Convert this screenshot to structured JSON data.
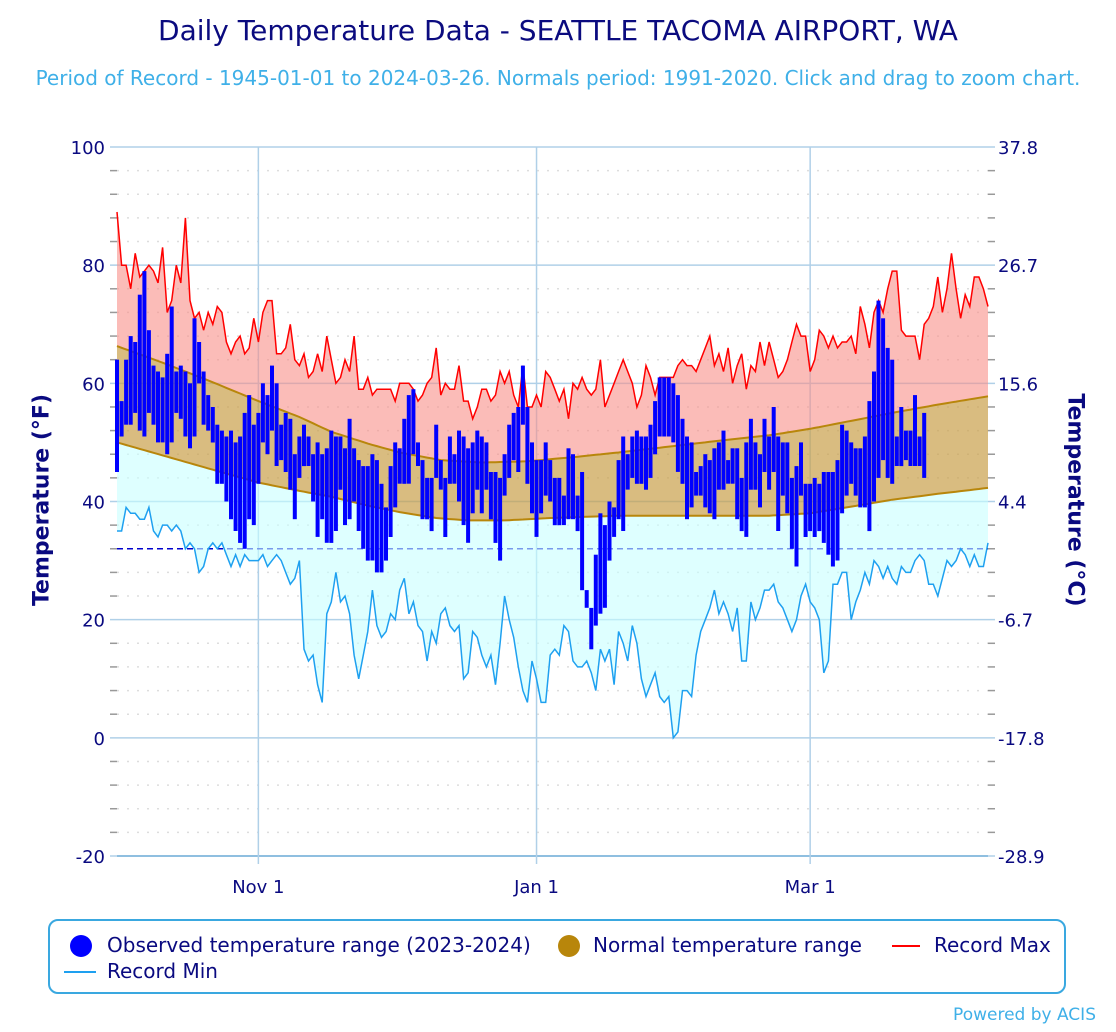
{
  "chart_data": {
    "type": "bar",
    "title": "Daily Temperature Data - SEATTLE TACOMA AIRPORT, WA",
    "subtitle": "Period of Record - 1945-01-01 to 2024-03-26. Normals period: 1991-2020. Click and drag to zoom chart.",
    "xlabel": "",
    "ylabel": "Temperature (°F)",
    "y2label": "Temperature (°C)",
    "ylim": [
      -20,
      100
    ],
    "y_ticks": [
      "100",
      "80",
      "60",
      "40",
      "20",
      "0",
      "-20"
    ],
    "y_tick_values": [
      100,
      80,
      60,
      40,
      20,
      0,
      -20
    ],
    "y2_ticks": [
      "37.8",
      "26.7",
      "15.6",
      "4.4",
      "-6.7",
      "-17.8",
      "-28.9"
    ],
    "x_start": "2023-10-01",
    "x_days": 192,
    "x_ticks": [
      {
        "label": "Nov 1",
        "day": 31
      },
      {
        "label": "Jan 1",
        "day": 92
      },
      {
        "label": "Mar 1",
        "day": 152
      }
    ],
    "grid": true,
    "freezing_line_f": 32,
    "legend_placement": "bottom",
    "colors": {
      "observed": "#0000ff",
      "normal": "#b8860b",
      "record_max": "#ff0000",
      "record_min": "#1ea0f0"
    },
    "series": {
      "observed": {
        "name": "Observed temperature range (2023-2024)",
        "high": [
          64,
          57,
          64,
          68,
          67,
          75,
          79,
          69,
          63,
          62,
          61,
          65,
          73,
          62,
          63,
          62,
          60,
          71,
          67,
          62,
          58,
          56,
          53,
          52,
          51,
          52,
          50,
          51,
          55,
          58,
          53,
          55,
          60,
          58,
          63,
          60,
          53,
          55,
          54,
          48,
          51,
          53,
          51,
          48,
          50,
          48,
          49,
          52,
          51,
          51,
          49,
          54,
          49,
          47,
          46,
          46,
          48,
          47,
          43,
          39,
          46,
          50,
          49,
          54,
          58,
          59,
          50,
          47,
          44,
          44,
          53,
          47,
          44,
          51,
          48,
          52,
          51,
          49,
          50,
          52,
          51,
          50,
          45,
          45,
          44,
          48,
          53,
          55,
          56,
          63,
          56,
          50,
          47,
          47,
          50,
          47,
          44,
          44,
          41,
          49,
          48,
          41,
          45,
          25,
          22,
          31,
          38,
          36,
          40,
          39,
          47,
          51,
          48,
          51,
          52,
          51,
          51,
          53,
          57,
          61,
          61,
          61,
          60,
          58,
          54,
          51,
          50,
          45,
          46,
          48,
          47,
          49,
          50,
          52,
          47,
          49,
          49,
          44,
          50,
          54,
          50,
          48,
          54,
          51,
          56,
          51,
          50,
          50,
          44,
          46,
          50,
          43,
          43,
          44,
          43,
          45,
          45,
          45,
          47,
          53,
          52,
          50,
          49,
          49,
          51,
          57,
          62,
          74,
          71,
          66,
          64,
          51,
          56,
          52,
          52,
          58,
          51,
          55
        ],
        "low": [
          45,
          51,
          53,
          53,
          55,
          52,
          51,
          55,
          53,
          50,
          50,
          48,
          50,
          55,
          54,
          51,
          49,
          51,
          60,
          53,
          52,
          50,
          43,
          43,
          40,
          37,
          35,
          33,
          32,
          37,
          36,
          43,
          50,
          48,
          52,
          46,
          47,
          45,
          42,
          37,
          44,
          46,
          46,
          40,
          34,
          37,
          33,
          33,
          35,
          42,
          36,
          37,
          40,
          35,
          32,
          30,
          30,
          28,
          28,
          30,
          34,
          39,
          43,
          43,
          43,
          48,
          46,
          37,
          37,
          35,
          44,
          42,
          34,
          43,
          43,
          40,
          36,
          33,
          38,
          42,
          38,
          42,
          37,
          33,
          30,
          41,
          44,
          47,
          45,
          53,
          43,
          38,
          34,
          38,
          41,
          40,
          36,
          36,
          36,
          37,
          37,
          35,
          25,
          22,
          15,
          19,
          21,
          22,
          30,
          34,
          37,
          35,
          42,
          44,
          43,
          43,
          42,
          44,
          48,
          51,
          51,
          51,
          50,
          45,
          43,
          37,
          39,
          41,
          41,
          39,
          38,
          37,
          42,
          42,
          43,
          43,
          37,
          35,
          34,
          42,
          42,
          39,
          45,
          42,
          45,
          35,
          41,
          38,
          32,
          29,
          41,
          34,
          35,
          34,
          35,
          33,
          31,
          29,
          30,
          38,
          41,
          43,
          41,
          39,
          39,
          35,
          40,
          44,
          47,
          44,
          43,
          46,
          46,
          47,
          46,
          46,
          46,
          44
        ]
      },
      "normal": {
        "name": "Normal temperature range",
        "high_points": [
          [
            0,
            66.3
          ],
          [
            10,
            63.5
          ],
          [
            20,
            60.5
          ],
          [
            31,
            57
          ],
          [
            40,
            54.3
          ],
          [
            47,
            51.8
          ],
          [
            55,
            49.8
          ],
          [
            62,
            48.3
          ],
          [
            71,
            47
          ],
          [
            80,
            46.6
          ],
          [
            90,
            46.8
          ],
          [
            100,
            47.5
          ],
          [
            110,
            48.3
          ],
          [
            120,
            49.2
          ],
          [
            130,
            50.1
          ],
          [
            143,
            51.2
          ],
          [
            152,
            52.3
          ],
          [
            160,
            53.5
          ],
          [
            170,
            55
          ],
          [
            180,
            56.4
          ],
          [
            191,
            57.8
          ]
        ],
        "low_points": [
          [
            0,
            50
          ],
          [
            10,
            47.8
          ],
          [
            20,
            45.6
          ],
          [
            31,
            43.2
          ],
          [
            40,
            41.8
          ],
          [
            47,
            40.8
          ],
          [
            55,
            39.3
          ],
          [
            62,
            38.2
          ],
          [
            70,
            37.2
          ],
          [
            77,
            36.8
          ],
          [
            85,
            36.8
          ],
          [
            95,
            37.2
          ],
          [
            110,
            37.6
          ],
          [
            130,
            37.6
          ],
          [
            143,
            37.6
          ],
          [
            152,
            38
          ],
          [
            160,
            39
          ],
          [
            170,
            40.3
          ],
          [
            180,
            41.3
          ],
          [
            191,
            42.3
          ]
        ]
      },
      "record_max": {
        "name": "Record Max",
        "values": [
          89,
          80,
          80,
          76,
          82,
          78,
          79,
          80,
          79,
          77,
          83,
          72,
          74,
          80,
          77,
          88,
          74,
          71,
          72,
          69,
          72,
          70,
          73,
          72,
          67,
          65,
          67,
          68,
          65,
          66,
          71,
          67,
          72,
          74,
          74,
          65,
          65,
          66,
          70,
          64,
          63,
          65,
          61,
          62,
          65,
          62,
          68,
          64,
          60,
          61,
          64,
          62,
          68,
          59,
          59,
          61,
          58,
          59,
          59,
          59,
          59,
          57,
          60,
          60,
          60,
          59,
          57,
          58,
          60,
          61,
          66,
          58,
          60,
          59,
          59,
          63,
          57,
          57,
          54,
          56,
          59,
          59,
          57,
          58,
          62,
          60,
          62,
          58,
          56,
          63,
          56,
          56,
          58,
          56,
          62,
          61,
          59,
          57,
          59,
          54,
          60,
          59,
          61,
          59,
          58,
          59,
          64,
          56,
          58,
          60,
          62,
          64,
          62,
          60,
          56,
          58,
          63,
          61,
          58,
          61,
          61,
          61,
          61,
          63,
          64,
          63,
          63,
          62,
          64,
          66,
          68,
          63,
          65,
          62,
          66,
          60,
          63,
          65,
          59,
          63,
          62,
          67,
          63,
          67,
          64,
          61,
          62,
          64,
          67,
          70,
          68,
          68,
          62,
          64,
          69,
          68,
          66,
          68,
          66,
          67,
          67,
          68,
          65,
          73,
          70,
          66,
          72,
          74,
          72,
          76,
          79,
          79,
          69,
          68,
          68,
          68,
          64,
          70,
          71,
          73,
          78,
          72,
          76,
          82,
          76,
          71,
          75,
          73,
          78,
          78,
          76,
          73
        ]
      },
      "record_min": {
        "name": "Record Min",
        "values": [
          35,
          35,
          39,
          38,
          38,
          37,
          37,
          39,
          35,
          34,
          36,
          36,
          35,
          36,
          35,
          32,
          33,
          32,
          28,
          29,
          32,
          33,
          32,
          33,
          31,
          29,
          31,
          29,
          31,
          30,
          30,
          30,
          31,
          29,
          30,
          31,
          30,
          28,
          26,
          27,
          30,
          15,
          13,
          14,
          9,
          6,
          21,
          23,
          28,
          23,
          24,
          21,
          14,
          10,
          14,
          18,
          25,
          19,
          17,
          18,
          21,
          20,
          25,
          27,
          21,
          23,
          19,
          18,
          13,
          18,
          16,
          21,
          22,
          19,
          18,
          19,
          10,
          11,
          18,
          17,
          14,
          12,
          14,
          9,
          16,
          24,
          20,
          17,
          12,
          8,
          6,
          13,
          10,
          6,
          6,
          14,
          15,
          14,
          19,
          18,
          13,
          12,
          12,
          13,
          11,
          8,
          15,
          13,
          15,
          9,
          18,
          16,
          13,
          19,
          16,
          10,
          7,
          9,
          11,
          7,
          6,
          7,
          0,
          1,
          8,
          8,
          7,
          14,
          18,
          20,
          22,
          25,
          21,
          23,
          21,
          18,
          22,
          13,
          13,
          23,
          20,
          22,
          25,
          25,
          26,
          23,
          22,
          20,
          18,
          20,
          24,
          26,
          23,
          22,
          20,
          11,
          13,
          26,
          26,
          28,
          28,
          20,
          23,
          25,
          28,
          26,
          30,
          29,
          27,
          29,
          27,
          26,
          29,
          28,
          28,
          30,
          31,
          30,
          26,
          26,
          24,
          27,
          30,
          29,
          30,
          32,
          31,
          29,
          31,
          29,
          29,
          33
        ]
      }
    }
  },
  "legend": {
    "observed": "Observed temperature range (2023-2024)",
    "normal": "Normal temperature range",
    "record_max": "Record Max",
    "record_min": "Record Min"
  },
  "footer": "Powered by ACIS"
}
